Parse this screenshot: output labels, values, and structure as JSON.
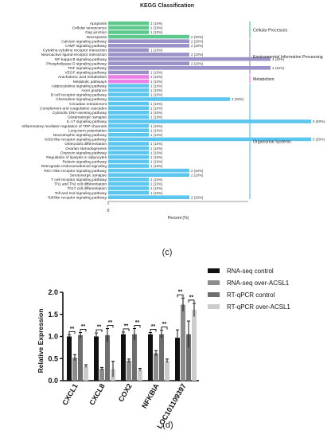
{
  "panel_labels": {
    "top": "(c)",
    "bottom": "(d)"
  },
  "chart_data": [
    {
      "type": "bar",
      "orientation": "horizontal",
      "title": "KEGG Classification",
      "xlabel": "Percent (%)",
      "x_tick_labels": [
        "0"
      ],
      "categories": [
        "Apoptosis",
        "Cellular senescence",
        "Gap junction",
        "Necroptosis",
        "Calcium signaling pathway",
        "cAMP signaling pathway",
        "Cytokine-cytokine receptor interaction",
        "Neuroactive ligand-receptor interaction",
        "NF-kappa B signaling pathway",
        "Phospholipase D signaling pathway",
        "TNF signaling pathway",
        "VEGF signaling pathway",
        "Arachidonic acid metabolism",
        "Metabolic pathways",
        "Adipocytokine signaling pathway",
        "Axon guidance",
        "B cell receptor signaling pathway",
        "Chemokine signaling pathway",
        "Circadian entrainment",
        "Complement and coagulation cascades",
        "Cytosolic DNA-sensing pathway",
        "Glutamatergic synapse",
        "IL-17 signaling pathway",
        "Inflammatory mediator regulation of TRP channels",
        "Long-term potentiation",
        "Neurotrophin signaling pathway",
        "NOD-like receptor signaling pathway",
        "Osteoclast differentiation",
        "Ovarian steroidogenesis",
        "Oxytocin signaling pathway",
        "Regulation of lipolysis in adipocytes",
        "Relaxin signaling pathway",
        "Retrograde endocannabinoid signaling",
        "RIG-I-like receptor signaling pathway",
        "Serotonergic synapse",
        "T cell receptor signaling pathway",
        "Th1 and Th2 cell differentiation",
        "Th17 cell differentiation",
        "Toll and Imd signaling pathway",
        "Toll-like receptor signaling pathway"
      ],
      "counts": [
        1,
        1,
        1,
        2,
        2,
        2,
        1,
        2,
        4,
        2,
        4,
        1,
        1,
        1,
        1,
        1,
        1,
        3,
        1,
        1,
        1,
        1,
        5,
        1,
        1,
        1,
        5,
        1,
        1,
        1,
        1,
        1,
        1,
        2,
        2,
        1,
        1,
        1,
        1,
        2
      ],
      "percents": [
        10,
        10,
        10,
        20,
        20,
        20,
        10,
        20,
        40,
        20,
        40,
        10,
        10,
        10,
        10,
        10,
        10,
        30,
        10,
        10,
        10,
        10,
        50,
        10,
        10,
        10,
        50,
        10,
        10,
        10,
        10,
        10,
        10,
        20,
        20,
        10,
        10,
        10,
        10,
        20
      ],
      "value_labels": [
        "1 (10%)",
        "1 (10%)",
        "1 (10%)",
        "2 (20%)",
        "2 (20%)",
        "2 (20%)",
        "1 (10%)",
        "2 (20%)",
        "4 (40%)",
        "2 (20%)",
        "4 (40%)",
        "1 (10%)",
        "1 (10%)",
        "1 (10%)",
        "1 (10%)",
        "1 (10%)",
        "1 (10%)",
        "3 (30%)",
        "1 (10%)",
        "1 (10%)",
        "1 (10%)",
        "1 (10%)",
        "5 (50%)",
        "1 (10%)",
        "1 (10%)",
        "1 (10%)",
        "5 (50%)",
        "1 (10%)",
        "1 (10%)",
        "1 (10%)",
        "1 (10%)",
        "1 (10%)",
        "1 (10%)",
        "2 (20%)",
        "2 (20%)",
        "1 (10%)",
        "1 (10%)",
        "1 (10%)",
        "1 (10%)",
        "2 (20%)"
      ],
      "groups": [
        {
          "name": "Cellular Processes",
          "start": 0,
          "end": 3,
          "color": "#5ec98c"
        },
        {
          "name": "Environmental Information Processing",
          "start": 4,
          "end": 11,
          "color": "#9b92c8"
        },
        {
          "name": "Metabolism",
          "start": 12,
          "end": 13,
          "color": "#ec7fe6"
        },
        {
          "name": "Organismal Systems",
          "start": 14,
          "end": 39,
          "color": "#5cc6ef"
        }
      ]
    },
    {
      "type": "bar",
      "ylabel": "Relative Expression",
      "ylim": [
        0,
        2.0
      ],
      "y_ticks": [
        "0.0",
        "0.5",
        "1.0",
        "1.5",
        "2.0"
      ],
      "categories": [
        "CXCL1",
        "CXCL8",
        "COX2",
        "NFKBIA",
        "LOC101109397"
      ],
      "series": [
        {
          "name": "RNA-seq control",
          "color": "#111111",
          "values": [
            1.0,
            1.0,
            1.05,
            1.05,
            0.97
          ],
          "errors": [
            0.04,
            0.08,
            0.05,
            0.04,
            0.18
          ]
        },
        {
          "name": "RNA-seq over-ACSL1",
          "color": "#8c8c8c",
          "values": [
            0.52,
            0.27,
            0.45,
            0.62,
            1.72
          ],
          "errors": [
            0.07,
            0.03,
            0.04,
            0.06,
            0.15
          ]
        },
        {
          "name": "RT-qPCR control",
          "color": "#6e6e6e",
          "values": [
            1.03,
            1.03,
            1.05,
            1.05,
            1.05
          ],
          "errors": [
            0.06,
            0.15,
            0.13,
            0.09,
            0.3
          ]
        },
        {
          "name": "RT-qPCR over-ACSL1",
          "color": "#cccccc",
          "values": [
            0.33,
            0.26,
            0.25,
            0.45,
            1.6
          ],
          "errors": [
            0.03,
            0.18,
            0.03,
            0.04,
            0.15
          ]
        }
      ],
      "significance_label": "**",
      "grid": false,
      "legend_placement": "top-right"
    }
  ]
}
